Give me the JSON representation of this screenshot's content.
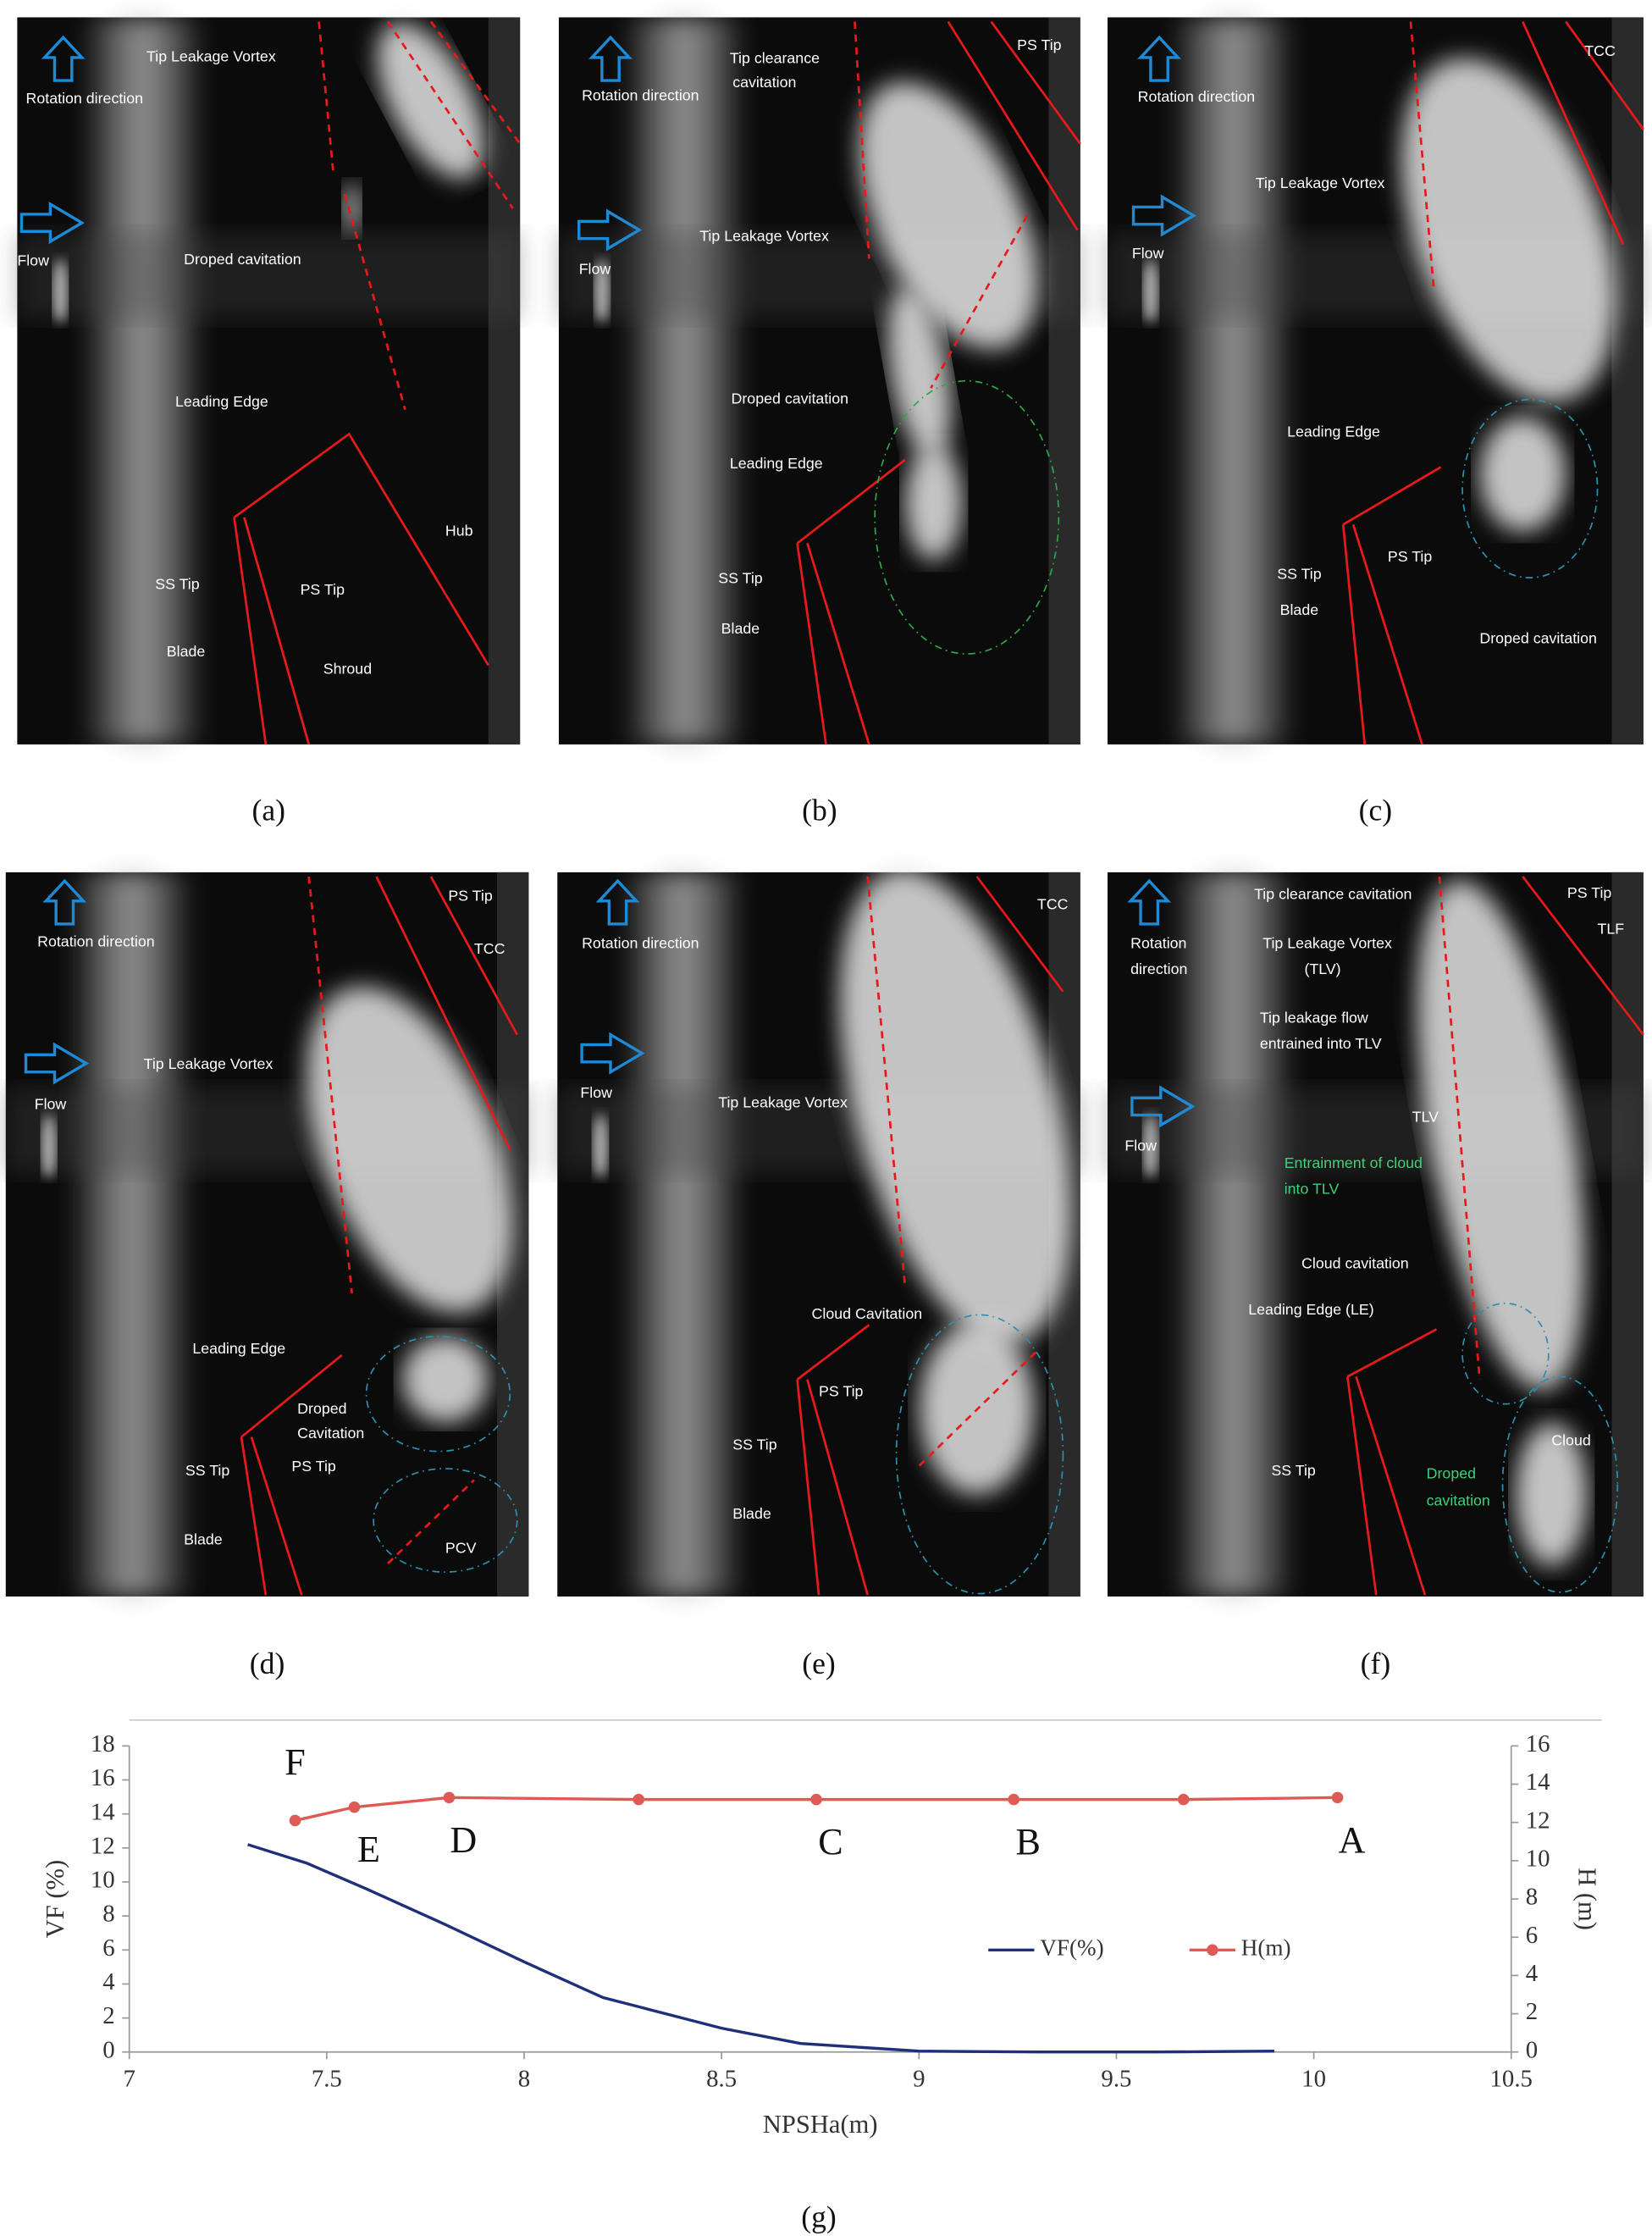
{
  "panels": [
    {
      "caption": "(a)",
      "labels": [
        "Tip Leakage Vortex",
        "Rotation direction",
        "Flow",
        "Droped cavitation",
        "Leading Edge",
        "Hub",
        "SS Tip",
        "PS Tip",
        "Blade",
        "Shroud"
      ]
    },
    {
      "caption": "(b)",
      "labels": [
        "Tip clearance",
        "cavitation",
        "PS Tip",
        "Rotation direction",
        "Tip Leakage Vortex",
        "Flow",
        "Droped cavitation",
        "Leading Edge",
        "SS Tip",
        "Blade"
      ]
    },
    {
      "caption": "(c)",
      "labels": [
        "TCC",
        "Rotation direction",
        "Tip Leakage Vortex",
        "Flow",
        "Leading Edge",
        "PS Tip",
        "SS Tip",
        "Blade",
        "Droped cavitation"
      ]
    },
    {
      "caption": "(d)",
      "labels": [
        "PS Tip",
        "TCC",
        "Rotation direction",
        "Tip Leakage Vortex",
        "Flow",
        "Leading Edge",
        "Droped",
        "Cavitation",
        "SS Tip",
        "PS Tip",
        "Blade",
        "PCV"
      ]
    },
    {
      "caption": "(e)",
      "labels": [
        "TCC",
        "Rotation direction",
        "Tip Leakage Vortex",
        "Flow",
        "Cloud Cavitation",
        "PS Tip",
        "SS Tip",
        "Blade"
      ]
    },
    {
      "caption": "(f)",
      "labels": [
        "Tip clearance cavitation",
        "PS Tip",
        "TLF",
        "Rotation",
        "direction",
        "Tip Leakage Vortex",
        "(TLV)",
        "Tip leakage flow",
        "entrained into TLV",
        "Flow",
        "TLV",
        "Entrainment of cloud",
        "into TLV",
        "Cloud cavitation",
        "Leading Edge (LE)",
        "SS Tip",
        "Cloud",
        "Droped",
        "cavitation"
      ]
    }
  ],
  "chart_data": {
    "type": "line",
    "caption": "(g)",
    "xlabel": "NPSHa(m)",
    "ylabel": "VF (%)",
    "y2label": "H (m)",
    "xlim": [
      7,
      10.5
    ],
    "xticks": [
      7,
      7.5,
      8,
      8.5,
      9,
      9.5,
      10,
      10.5
    ],
    "ylim": [
      0,
      18
    ],
    "yticks": [
      0,
      2,
      4,
      6,
      8,
      10,
      12,
      14,
      16,
      18
    ],
    "y2lim": [
      0,
      16
    ],
    "y2ticks": [
      0,
      2,
      4,
      6,
      8,
      10,
      12,
      14,
      16
    ],
    "legend": "right",
    "grid": false,
    "series": [
      {
        "name": "VF(%)",
        "color": "#1f2f7a",
        "marker": false,
        "x": [
          7.3,
          7.45,
          7.6,
          7.8,
          8.0,
          8.2,
          8.3,
          8.5,
          8.7,
          9.0,
          9.3,
          9.6,
          9.9
        ],
        "values": [
          12.2,
          11.1,
          9.6,
          7.5,
          5.3,
          3.2,
          2.6,
          1.4,
          0.5,
          0.05,
          0,
          0,
          0.05
        ]
      },
      {
        "name": "H(m)",
        "color": "#e05a55",
        "marker": true,
        "axis": "y2",
        "x": [
          7.42,
          7.57,
          7.81,
          8.29,
          8.74,
          9.24,
          9.67,
          10.06
        ],
        "values": [
          12.1,
          12.8,
          13.3,
          13.2,
          13.2,
          13.2,
          13.2,
          13.3
        ],
        "point_labels": [
          "F",
          "E",
          "D",
          null,
          "C",
          "B",
          null,
          "A"
        ]
      }
    ]
  }
}
